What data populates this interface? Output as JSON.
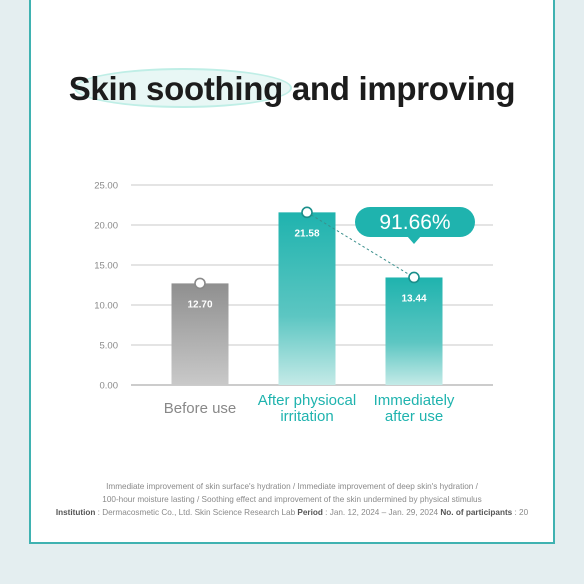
{
  "title": {
    "highlight": "Skin soothing",
    "rest": " and improving"
  },
  "chart_data": {
    "type": "bar",
    "title": "Skin soothing and improving",
    "categories": [
      "Before use",
      "After physiocal irritation",
      "Immediately after use"
    ],
    "category_lines": [
      [
        "Before use"
      ],
      [
        "After physiocal",
        "irritation"
      ],
      [
        "Immediately",
        "after use"
      ]
    ],
    "values": [
      12.7,
      21.58,
      13.44
    ],
    "value_labels": [
      "12.70",
      "21.58",
      "13.44"
    ],
    "yticks": [
      "0.00",
      "5.00",
      "10.00",
      "15.00",
      "20.00",
      "25.00"
    ],
    "ylim": [
      0,
      25
    ],
    "grid": true,
    "annotation": "91.66%",
    "colors": {
      "before": "#999999",
      "after_top": "#1fb3ae",
      "after_bottom": "#bfe8e5",
      "label_before": "#888888",
      "label_teal": "#1fb3ae",
      "callout": "#1fb3ae"
    }
  },
  "footnote": {
    "line1": "Immediate improvement of skin surface's hydration / Immediate improvement of deep skin's hydration /",
    "line2": "100-hour moisture lasting / Soothing effect and improvement of the skin undermined by physical stimulus",
    "institution_label": "Institution",
    "institution": " : Dermacosmetic Co., Ltd. Skin Science Research Lab ",
    "period_label": "Period",
    "period": " : Jan. 12, 2024 – Jan. 29, 2024   ",
    "participants_label": "No. of participants",
    "participants": " : 20"
  }
}
